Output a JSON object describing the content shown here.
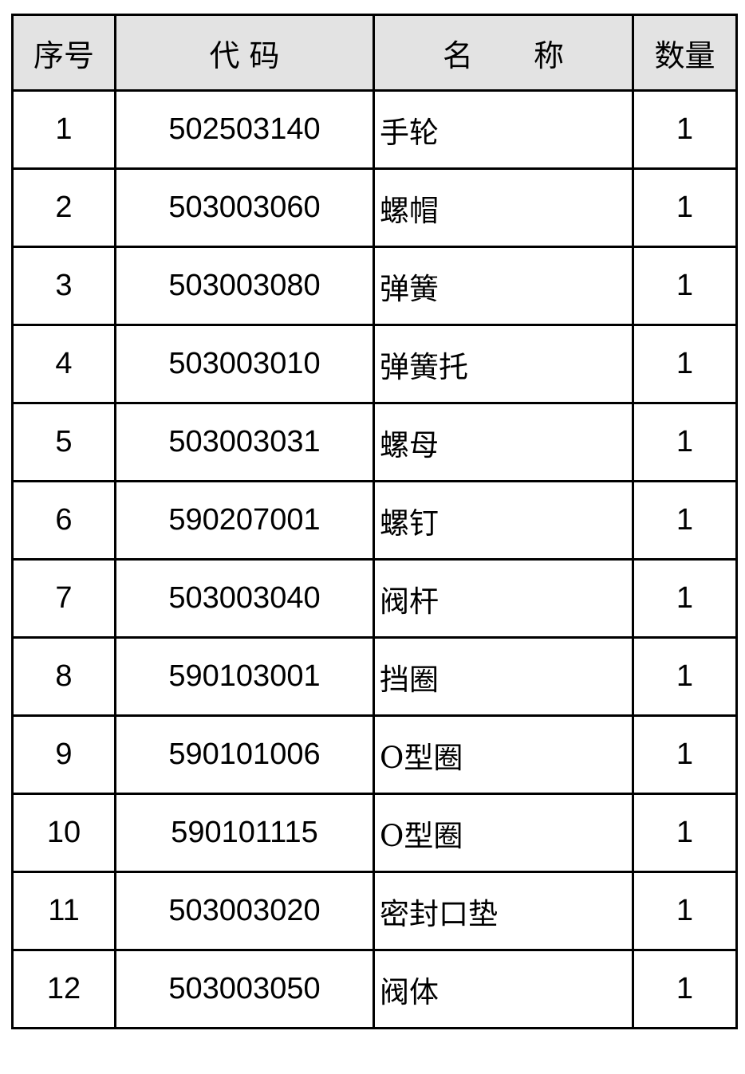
{
  "table": {
    "headers": [
      "序号",
      "代 码",
      "名　　称",
      "数量"
    ],
    "rows": [
      {
        "no": "1",
        "code": "502503140",
        "name": "手轮",
        "qty": "1"
      },
      {
        "no": "2",
        "code": "503003060",
        "name": "螺帽",
        "qty": "1"
      },
      {
        "no": "3",
        "code": "503003080",
        "name": "弹簧",
        "qty": "1"
      },
      {
        "no": "4",
        "code": "503003010",
        "name": "弹簧托",
        "qty": "1"
      },
      {
        "no": "5",
        "code": "503003031",
        "name": "螺母",
        "qty": "1"
      },
      {
        "no": "6",
        "code": "590207001",
        "name": "螺钉",
        "qty": "1"
      },
      {
        "no": "7",
        "code": "503003040",
        "name": "阀杆",
        "qty": "1"
      },
      {
        "no": "8",
        "code": "590103001",
        "name": "挡圈",
        "qty": "1"
      },
      {
        "no": "9",
        "code": "590101006",
        "name": "O型圈",
        "qty": "1"
      },
      {
        "no": "10",
        "code": "590101115",
        "name": "O型圈",
        "qty": "1"
      },
      {
        "no": "11",
        "code": "503003020",
        "name": "密封口垫",
        "qty": "1"
      },
      {
        "no": "12",
        "code": "503003050",
        "name": "阀体",
        "qty": "1"
      }
    ]
  }
}
